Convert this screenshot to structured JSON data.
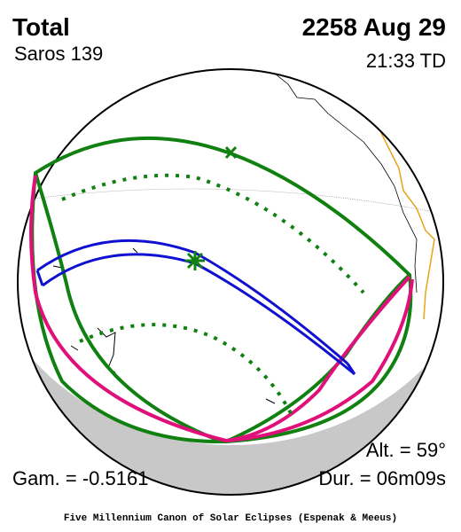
{
  "header": {
    "eclipse_type": "Total",
    "saros": "Saros 139",
    "date": "2258 Aug 29",
    "time": "21:33 TD"
  },
  "stats": {
    "altitude": "Alt. = 59°",
    "gamma": "Gam. = -0.5161",
    "duration": "Dur. = 06m09s"
  },
  "footer": {
    "credit": "Five Millennium Canon of Solar Eclipses (Espenak & Meeus)"
  }
}
